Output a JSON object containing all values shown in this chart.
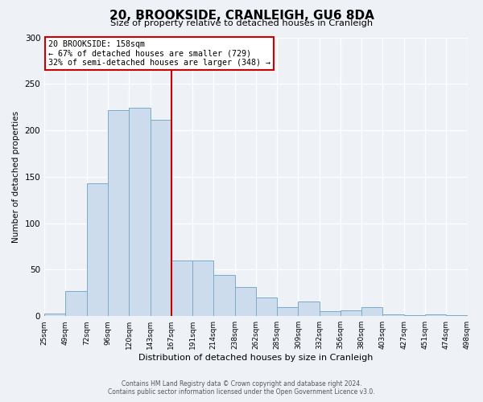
{
  "title": "20, BROOKSIDE, CRANLEIGH, GU6 8DA",
  "subtitle": "Size of property relative to detached houses in Cranleigh",
  "xlabel": "Distribution of detached houses by size in Cranleigh",
  "ylabel": "Number of detached properties",
  "bar_color": "#ccdcec",
  "bar_edge_color": "#7aaaca",
  "background_color": "#eef2f7",
  "counts": [
    3,
    27,
    143,
    222,
    224,
    211,
    60,
    60,
    44,
    31,
    20,
    10,
    16,
    5,
    6,
    10,
    2,
    1,
    2,
    1
  ],
  "tick_labels": [
    "25sqm",
    "49sqm",
    "72sqm",
    "96sqm",
    "120sqm",
    "143sqm",
    "167sqm",
    "191sqm",
    "214sqm",
    "238sqm",
    "262sqm",
    "285sqm",
    "309sqm",
    "332sqm",
    "356sqm",
    "380sqm",
    "403sqm",
    "427sqm",
    "451sqm",
    "474sqm",
    "498sqm"
  ],
  "vline_index": 6.0,
  "vline_color": "#cc0000",
  "annotation_title": "20 BROOKSIDE: 158sqm",
  "annotation_line1": "← 67% of detached houses are smaller (729)",
  "annotation_line2": "32% of semi-detached houses are larger (348) →",
  "annotation_box_edge": "#cc0000",
  "ylim": [
    0,
    300
  ],
  "yticks": [
    0,
    50,
    100,
    150,
    200,
    250,
    300
  ],
  "footnote1": "Contains HM Land Registry data © Crown copyright and database right 2024.",
  "footnote2": "Contains public sector information licensed under the Open Government Licence v3.0."
}
